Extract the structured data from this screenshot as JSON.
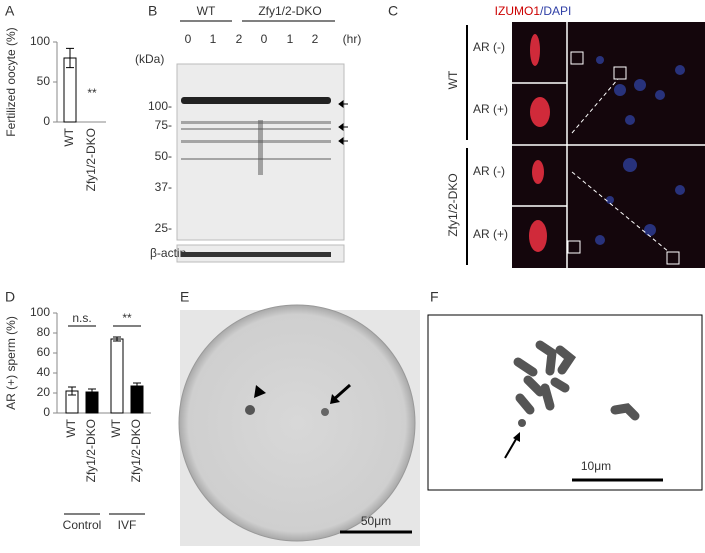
{
  "panels": [
    "A",
    "B",
    "C",
    "D",
    "E",
    "F"
  ],
  "chart_data": [
    {
      "type": "bar",
      "ylabel": "Fertilized oocyte (%)",
      "categories": [
        "WT",
        "Zfy1/2-DKO"
      ],
      "values": [
        80,
        0
      ],
      "errors": [
        12,
        0
      ],
      "colors": [
        "#ffffff",
        "#000000"
      ],
      "ylim": [
        0,
        100
      ],
      "yticks": [
        0,
        50,
        100
      ],
      "annotations": [
        "**"
      ]
    },
    {
      "type": "bar",
      "ylabel": "AR (+) sperm (%)",
      "categories": [
        "WT",
        "Zfy1/2-DKO",
        "WT",
        "Zfy1/2-DKO"
      ],
      "values": [
        22,
        21,
        74,
        27
      ],
      "errors": [
        4,
        3,
        2,
        3
      ],
      "colors": [
        "#ffffff",
        "#000000",
        "#ffffff",
        "#000000"
      ],
      "ylim": [
        0,
        100
      ],
      "yticks": [
        0,
        20,
        40,
        60,
        80,
        100
      ],
      "annotations": [
        "n.s.",
        "**"
      ],
      "groups": [
        "Control",
        "IVF"
      ]
    }
  ],
  "blot": {
    "groups": [
      "WT",
      "Zfy1/2-DKO"
    ],
    "times": [
      "0",
      "1",
      "2",
      "0",
      "1",
      "2"
    ],
    "time_unit": "(hr)",
    "mw_unit": "(kDa)",
    "markers": [
      "100-",
      "75-",
      "50-",
      "37-",
      "25-"
    ],
    "loading": "β-actin"
  },
  "micrograph": {
    "stain": "IZUMO1",
    "counterstain": "/DAPI",
    "rows": [
      "WT",
      "Zfy1/2-DKO"
    ],
    "conditions": [
      "AR (-)",
      "AR (+)",
      "AR (-)",
      "AR (+)"
    ]
  },
  "scale_bars": [
    "50μm",
    "10μm"
  ]
}
